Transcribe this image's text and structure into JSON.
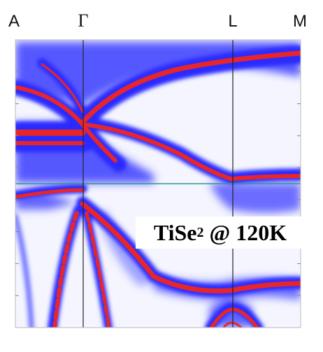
{
  "chart_data": {
    "type": "heatmap",
    "title": "",
    "xlabel": "",
    "ylabel": "",
    "x_tick_labels": [
      "A",
      "Γ",
      "L",
      "M"
    ],
    "y_tick_count": 9,
    "fermi_line": true,
    "color_scale": {
      "low": "#ffffff",
      "mid": "#2a2cff",
      "high": "#e8262a"
    },
    "horizontal_line_color": "#2a9a8a",
    "annotation": {
      "compound": "TiSe",
      "subscript": "2",
      "condition": "@ 120K"
    }
  }
}
